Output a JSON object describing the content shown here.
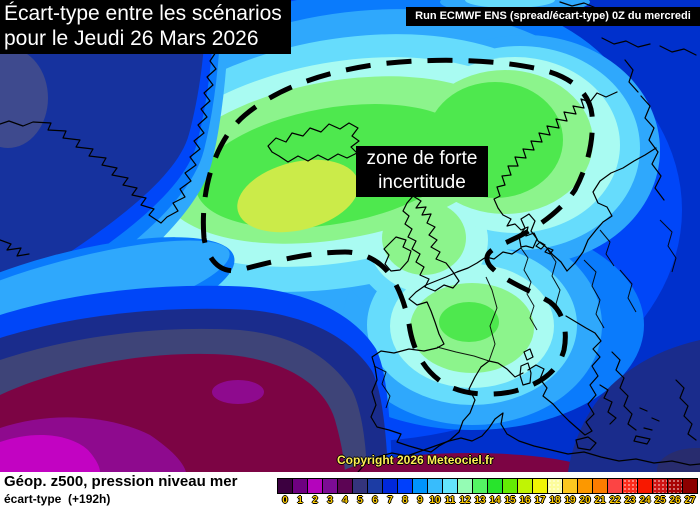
{
  "header": {
    "title_line1": "Écart-type entre les scénarios",
    "title_line2": "pour le Jeudi 26 Mars 2026",
    "run_label": "Run ECMWF ENS (spread/écart-type) 0Z du mercredi"
  },
  "map_overlay": {
    "annotation_line1": "zone de forte",
    "annotation_line2": "incertitude",
    "copyright": "Copyright 2026 Meteociel.fr"
  },
  "footer": {
    "param_line1": "Géop. z500, pression niveau mer",
    "param_line2": "écart-type  (+192h)"
  },
  "colorbar": {
    "labels": [
      "0",
      "1",
      "2",
      "3",
      "4",
      "5",
      "6",
      "7",
      "8",
      "9",
      "10",
      "11",
      "12",
      "13",
      "14",
      "15",
      "16",
      "17",
      "18",
      "19",
      "20",
      "21",
      "22",
      "23",
      "24",
      "25",
      "26",
      "27"
    ],
    "colors": [
      "#3c0040",
      "#6e0080",
      "#b404bc",
      "#7c0c94",
      "#5c0454",
      "#34347c",
      "#1c3ca4",
      "#0028dc",
      "#0040fc",
      "#0094fc",
      "#38bcfc",
      "#64e4fc",
      "#94fcb4",
      "#54f464",
      "#28e42c",
      "#64ec04",
      "#c0f404",
      "#f0f404",
      "#fcfc9c",
      "#fcc820",
      "#fc9800",
      "#fc7c00",
      "#fc4444",
      "#fc2c1c",
      "#f81800",
      "#d01414",
      "#a80404",
      "#8c0000"
    ],
    "stippled_indices": [
      18,
      23,
      25,
      26
    ],
    "label_color": "#ffcc00"
  },
  "map_palette": {
    "base_blue": "#0030cc",
    "blue": "#0046f8",
    "dodger_blue": "#0a7bfc",
    "light_blue": "#2fa8fc",
    "cyan": "#66dcfc",
    "pale_cyan": "#a9fbf2",
    "light_green": "#8cf48c",
    "green": "#4ee84e",
    "core_yellow_green": "#cbeb49",
    "greenland_navy": "#16329e",
    "corner_slate": "#3e4a8e",
    "deep_navy": "#1a2c8c",
    "slate": "#3e4478",
    "wine": "#7c0444",
    "purple": "#8e0a8e",
    "magenta": "#c203c2",
    "corner_navy": "#282c6e",
    "coastline": "#000000",
    "contour": "#000000"
  }
}
